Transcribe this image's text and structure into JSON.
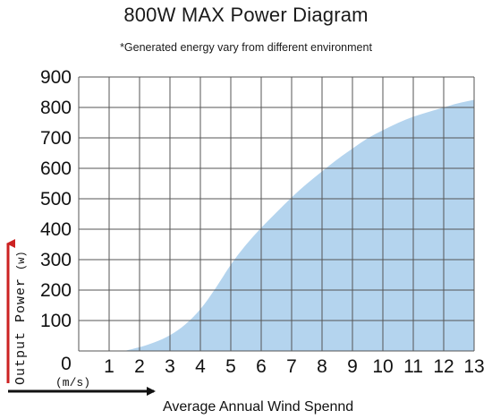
{
  "title": "800W MAX Power Diagram",
  "subtitle": "*Generated energy vary from different environment",
  "colors": {
    "fill": "#b4d4ee",
    "grid": "#555555",
    "axis_arrow": "#111111",
    "y_arrow": "#cc2222"
  },
  "chart_data": {
    "type": "area",
    "title": "800W MAX Power Diagram",
    "subtitle": "*Generated energy vary from different environment",
    "xlabel": "Average Annual Wind Spennd",
    "xunit": "(m/s)",
    "ylabel": "Output Power",
    "yunit": "(w)",
    "xlim": [
      0,
      13
    ],
    "ylim": [
      0,
      900
    ],
    "xticks": [
      0,
      1,
      2,
      3,
      4,
      5,
      6,
      7,
      8,
      9,
      10,
      11,
      12,
      13
    ],
    "yticks": [
      0,
      100,
      200,
      300,
      400,
      500,
      600,
      700,
      800,
      900
    ],
    "grid": true,
    "series": [
      {
        "x": [
          1.5,
          2,
          2.5,
          3,
          3.5,
          4,
          4.5,
          5,
          5.5,
          6,
          6.5,
          7,
          7.5,
          8,
          8.5,
          9,
          9.5,
          10,
          10.5,
          11,
          11.5,
          12,
          12.5,
          13
        ],
        "y": [
          0,
          12,
          28,
          50,
          85,
          135,
          205,
          285,
          350,
          405,
          455,
          505,
          550,
          590,
          630,
          665,
          700,
          725,
          750,
          770,
          785,
          800,
          815,
          825
        ]
      }
    ]
  }
}
